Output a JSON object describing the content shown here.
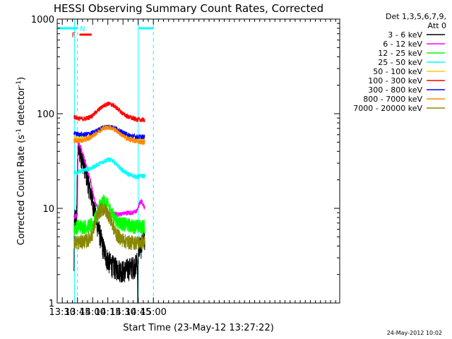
{
  "chart_data": {
    "type": "line",
    "title": "HESSI Observing Summary Count Rates, Corrected",
    "xlabel": "Start Time (23-May-12 13:27:22)",
    "ylabel_main": "Corrected Count Rate (s",
    "ylabel_sup1": "-1",
    "ylabel_mid": " detector",
    "ylabel_sup2": "-1",
    "ylabel_end": ")",
    "xlim_min": [
      805,
      1084
    ],
    "ylim": [
      1,
      1000
    ],
    "yscale": "log",
    "x_ticks": [
      {
        "t": 810,
        "label": "13:30"
      },
      {
        "t": 825,
        "label": "13:45"
      },
      {
        "t": 840,
        "label": "14:00"
      },
      {
        "t": 855,
        "label": "14:15"
      },
      {
        "t": 870,
        "label": "14:30"
      },
      {
        "t": 885,
        "label": "14:45"
      },
      {
        "t": 900,
        "label": "15:00"
      }
    ],
    "y_ticks": [
      {
        "v": 1,
        "label": "1"
      },
      {
        "v": 10,
        "label": "10"
      },
      {
        "v": 100,
        "label": "100"
      },
      {
        "v": 1000,
        "label": "1000"
      }
    ],
    "legend_header": [
      "Det 1,3,5,6,7,9,",
      "Att 0"
    ],
    "legend_position": "right",
    "series": [
      {
        "name": "3 - 6 keV",
        "color": "#000000",
        "points": [
          [
            821.5,
            2
          ],
          [
            822,
            8
          ],
          [
            824,
            8
          ],
          [
            825.5,
            45
          ],
          [
            828,
            38
          ],
          [
            832,
            28
          ],
          [
            836,
            18
          ],
          [
            840,
            12
          ],
          [
            843,
            8
          ],
          [
            846,
            6
          ],
          [
            850,
            4
          ],
          [
            854,
            3
          ],
          [
            858,
            2.6
          ],
          [
            862,
            2.4
          ],
          [
            866,
            2.3
          ],
          [
            870,
            2.2
          ],
          [
            874,
            2.3
          ],
          [
            878,
            2.4
          ],
          [
            882,
            2.5
          ],
          [
            884,
            2.8
          ],
          [
            884.7,
            1
          ],
          [
            884.9,
            3
          ],
          [
            886,
            4
          ],
          [
            888,
            4
          ],
          [
            890,
            5
          ],
          [
            891.5,
            5
          ]
        ]
      },
      {
        "name": "6 - 12 keV",
        "color": "#ff00ff",
        "points": [
          [
            821.5,
            8
          ],
          [
            825,
            8.5
          ],
          [
            825.5,
            50
          ],
          [
            828,
            45
          ],
          [
            831,
            35
          ],
          [
            835,
            25
          ],
          [
            838,
            20
          ],
          [
            840,
            15
          ],
          [
            843,
            11
          ],
          [
            846,
            10
          ],
          [
            850,
            9.5
          ],
          [
            855,
            9
          ],
          [
            860,
            8.8
          ],
          [
            865,
            8.6
          ],
          [
            870,
            8.8
          ],
          [
            875,
            9
          ],
          [
            880,
            9
          ],
          [
            884,
            9.5
          ],
          [
            886,
            11
          ],
          [
            888,
            12
          ],
          [
            890,
            11
          ],
          [
            891.5,
            10
          ]
        ]
      },
      {
        "name": "12 - 25 keV",
        "color": "#00ff00",
        "points": [
          [
            821.5,
            6
          ],
          [
            825,
            6.5
          ],
          [
            830,
            6.5
          ],
          [
            835,
            6.5
          ],
          [
            840,
            6.8
          ],
          [
            843,
            8
          ],
          [
            847,
            11
          ],
          [
            851,
            12
          ],
          [
            855,
            11
          ],
          [
            859,
            9
          ],
          [
            863,
            7.5
          ],
          [
            868,
            7
          ],
          [
            873,
            6.8
          ],
          [
            878,
            6.6
          ],
          [
            884,
            6.5
          ],
          [
            888,
            6.5
          ],
          [
            891.5,
            6.5
          ]
        ]
      },
      {
        "name": "25 - 50 keV",
        "color": "#00ffff",
        "points": [
          [
            821.5,
            24
          ],
          [
            825,
            24
          ],
          [
            830,
            25
          ],
          [
            835,
            26
          ],
          [
            840,
            27
          ],
          [
            845,
            29
          ],
          [
            850,
            31
          ],
          [
            855,
            33
          ],
          [
            860,
            32
          ],
          [
            865,
            28
          ],
          [
            870,
            25
          ],
          [
            875,
            23
          ],
          [
            880,
            22
          ],
          [
            884,
            21.5
          ],
          [
            888,
            22
          ],
          [
            891.5,
            22
          ]
        ]
      },
      {
        "name": "50 - 100 keV",
        "color": "#ffcc00",
        "points": [
          [
            821.5,
            55
          ],
          [
            825,
            54
          ],
          [
            830,
            54
          ],
          [
            835,
            56
          ],
          [
            840,
            60
          ],
          [
            845,
            66
          ],
          [
            850,
            71
          ],
          [
            855,
            73
          ],
          [
            860,
            71
          ],
          [
            865,
            66
          ],
          [
            870,
            60
          ],
          [
            875,
            56
          ],
          [
            880,
            54
          ],
          [
            884,
            53
          ],
          [
            888,
            52
          ],
          [
            891.5,
            52
          ]
        ]
      },
      {
        "name": "100 - 300 keV",
        "color": "#ff0000",
        "points": [
          [
            821.5,
            93
          ],
          [
            825,
            90
          ],
          [
            830,
            88
          ],
          [
            835,
            90
          ],
          [
            840,
            96
          ],
          [
            845,
            108
          ],
          [
            850,
            120
          ],
          [
            855,
            128
          ],
          [
            860,
            124
          ],
          [
            865,
            112
          ],
          [
            870,
            100
          ],
          [
            875,
            93
          ],
          [
            880,
            89
          ],
          [
            884,
            87
          ],
          [
            888,
            86
          ],
          [
            891.5,
            86
          ]
        ]
      },
      {
        "name": "300 - 800 keV",
        "color": "#0000ff",
        "points": [
          [
            821.5,
            62
          ],
          [
            825,
            61
          ],
          [
            830,
            60
          ],
          [
            835,
            61
          ],
          [
            840,
            63
          ],
          [
            845,
            67
          ],
          [
            850,
            71
          ],
          [
            855,
            73
          ],
          [
            860,
            72
          ],
          [
            865,
            68
          ],
          [
            870,
            63
          ],
          [
            875,
            60
          ],
          [
            880,
            58
          ],
          [
            884,
            57
          ],
          [
            888,
            57
          ],
          [
            891.5,
            57
          ]
        ]
      },
      {
        "name": "800 - 7000 keV",
        "color": "#ff8800",
        "points": [
          [
            821.5,
            52
          ],
          [
            825,
            52
          ],
          [
            830,
            52
          ],
          [
            835,
            54
          ],
          [
            840,
            58
          ],
          [
            845,
            64
          ],
          [
            850,
            70
          ],
          [
            855,
            72
          ],
          [
            860,
            70
          ],
          [
            865,
            64
          ],
          [
            870,
            58
          ],
          [
            875,
            54
          ],
          [
            880,
            52
          ],
          [
            884,
            51
          ],
          [
            888,
            50
          ],
          [
            891.5,
            50
          ]
        ]
      },
      {
        "name": "7000 - 20000 keV",
        "color": "#888800",
        "points": [
          [
            821.5,
            4.5
          ],
          [
            825,
            4.4
          ],
          [
            830,
            4.5
          ],
          [
            835,
            4.6
          ],
          [
            840,
            5.5
          ],
          [
            843,
            7.5
          ],
          [
            847,
            9.5
          ],
          [
            851,
            10
          ],
          [
            855,
            9
          ],
          [
            859,
            7
          ],
          [
            863,
            5.5
          ],
          [
            868,
            4.8
          ],
          [
            873,
            4.5
          ],
          [
            878,
            4.4
          ],
          [
            884,
            4.4
          ],
          [
            888,
            4.4
          ],
          [
            891.5,
            4.4
          ]
        ]
      }
    ],
    "spacecraft_day": {
      "color": "#00ffff",
      "level": 800,
      "segments": [
        [
          805,
          825
        ],
        [
          885,
          900
        ]
      ],
      "solid_vlines": [
        822,
        885
      ],
      "dashed_vlines": [
        825,
        900
      ]
    },
    "flare_flag": {
      "label": "F",
      "color": "#ff0000",
      "start": 827,
      "end": 839
    },
    "saa_flag": {
      "label": "N",
      "color": "#00ffff",
      "t": 826
    },
    "timestamp": "24-May-2012 10:02"
  }
}
